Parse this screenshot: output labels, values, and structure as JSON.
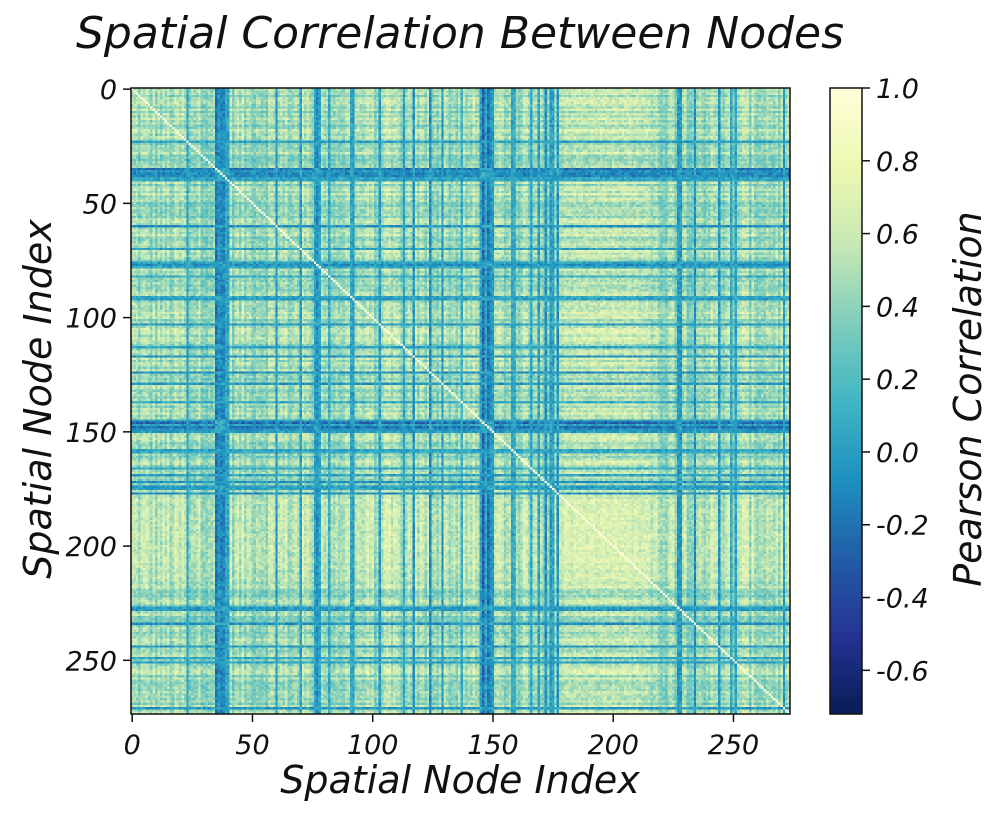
{
  "chart_data": {
    "type": "heatmap",
    "title": "Spatial Correlation Between Nodes",
    "xlabel": "Spatial Node Index",
    "ylabel": "Spatial Node Index",
    "n_nodes": 274,
    "xlim": [
      0,
      274
    ],
    "ylim": [
      274,
      0
    ],
    "x_ticks": [
      0,
      50,
      100,
      150,
      200,
      250
    ],
    "y_ticks": [
      0,
      50,
      100,
      150,
      200,
      250
    ],
    "x_tick_labels": [
      "0",
      "50",
      "100",
      "150",
      "200",
      "250"
    ],
    "y_tick_labels": [
      "0",
      "50",
      "100",
      "150",
      "200",
      "250"
    ],
    "diagonal_value": 1.0,
    "colorbar": {
      "label": "Pearson Correlation",
      "colormap": "YlGnBu_r",
      "vmin": -0.72,
      "vmax": 1.0,
      "ticks": [
        1.0,
        0.8,
        0.6,
        0.4,
        0.2,
        0.0,
        -0.2,
        -0.4,
        -0.6
      ],
      "tick_labels": [
        "1.0",
        "0.8",
        "0.6",
        "0.4",
        "0.2",
        "0.0",
        "-0.2",
        "-0.4",
        "-0.6"
      ]
    },
    "low_correlation_bands": [
      {
        "start": 35,
        "end": 40
      },
      {
        "start": 145,
        "end": 150
      }
    ],
    "high_correlation_region": {
      "start": 180,
      "end": 215
    }
  }
}
